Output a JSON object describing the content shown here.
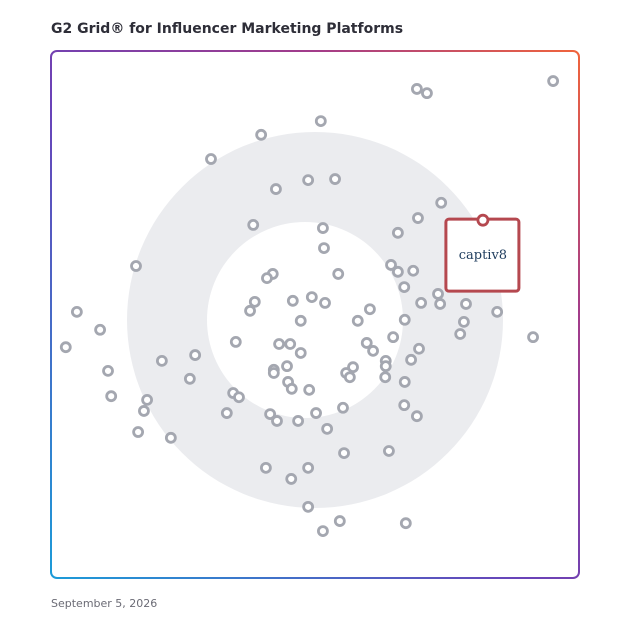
{
  "chart_data": {
    "type": "scatter",
    "title": "G2 Grid® for Influencer Marketing Platforms",
    "date": "September 5, 2026",
    "xlim": [
      0,
      100
    ],
    "ylim": [
      0,
      100
    ],
    "color": "#a4a7b0",
    "highlight": {
      "label": "captiv8",
      "x": 81.8,
      "y": 67.9,
      "color": "#b5484f"
    },
    "x": [
      95.1,
      69.3,
      71.2,
      51.1,
      39.8,
      30.3,
      48.7,
      53.8,
      42.6,
      73.9,
      69.5,
      38.3,
      51.5,
      65.7,
      51.7,
      16.1,
      64.4,
      65.7,
      68.6,
      54.4,
      42.0,
      40.9,
      66.9,
      38.6,
      45.8,
      49.4,
      51.9,
      37.7,
      73.3,
      73.7,
      78.6,
      70.1,
      60.4,
      84.5,
      4.9,
      9.3,
      47.3,
      58.1,
      67.0,
      78.2,
      77.5,
      91.3,
      64.8,
      2.8,
      35.0,
      43.2,
      45.3,
      59.8,
      47.3,
      61.0,
      69.7,
      27.3,
      21.0,
      68.2,
      63.4,
      63.4,
      57.2,
      55.9,
      44.7,
      42.2,
      42.2,
      10.8,
      26.3,
      63.3,
      56.6,
      44.9,
      45.6,
      48.9,
      67.0,
      34.5,
      35.6,
      11.4,
      18.2,
      17.6,
      55.3,
      66.9,
      33.3,
      41.5,
      50.2,
      42.8,
      46.8,
      69.3,
      16.5,
      22.7,
      52.3,
      64.0,
      55.5,
      40.7,
      48.7,
      45.5,
      48.7,
      67.2,
      54.7,
      51.5
    ],
    "values": [
      94.3,
      92.8,
      92.0,
      86.7,
      84.1,
      79.5,
      75.5,
      75.7,
      73.8,
      71.2,
      68.3,
      67.0,
      66.4,
      65.5,
      62.6,
      59.2,
      59.4,
      58.1,
      58.3,
      57.7,
      57.7,
      56.9,
      55.2,
      52.4,
      52.6,
      53.3,
      52.2,
      50.7,
      53.9,
      52.0,
      52.0,
      52.2,
      51.0,
      50.5,
      50.5,
      47.1,
      48.8,
      48.8,
      49.0,
      48.6,
      46.3,
      45.7,
      45.7,
      43.8,
      44.8,
      44.4,
      44.4,
      44.6,
      42.7,
      43.1,
      43.5,
      42.3,
      41.2,
      41.4,
      41.2,
      40.2,
      40.0,
      38.9,
      40.2,
      39.5,
      38.9,
      39.3,
      37.8,
      38.1,
      38.1,
      37.2,
      35.9,
      35.7,
      37.2,
      35.1,
      34.3,
      34.5,
      33.8,
      31.7,
      32.3,
      32.8,
      31.3,
      31.1,
      31.3,
      29.8,
      29.8,
      30.7,
      27.7,
      26.6,
      28.3,
      24.1,
      23.7,
      20.9,
      20.9,
      18.8,
      13.5,
      10.4,
      10.8,
      8.9
    ]
  }
}
